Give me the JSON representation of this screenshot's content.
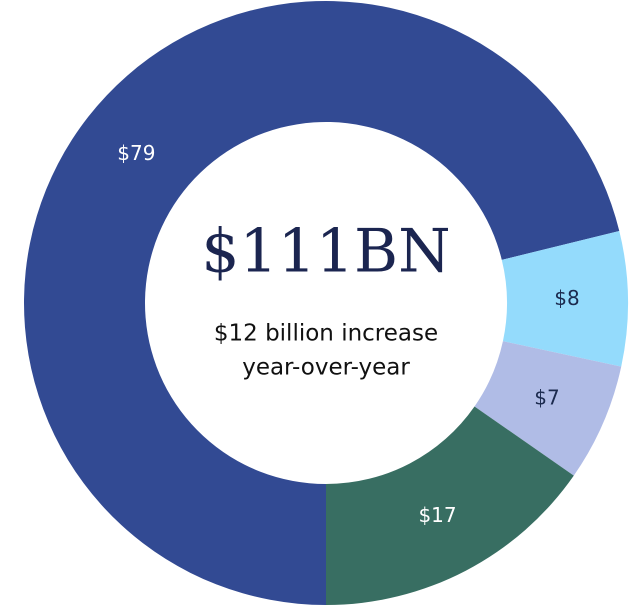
{
  "chart_data": {
    "type": "donut",
    "title": "$111BN",
    "annotation": [
      "$12 billion increase",
      "year-over-year"
    ],
    "values": [
      79,
      8,
      7,
      17
    ],
    "value_labels": [
      "$79",
      "$8",
      "$7",
      "$17"
    ],
    "colors": [
      "#324a93",
      "#94dbfc",
      "#b0bce6",
      "#386e62"
    ],
    "label_colors": [
      "#ffffff",
      "#1b2a4e",
      "#1b2a4e",
      "#ffffff"
    ]
  }
}
